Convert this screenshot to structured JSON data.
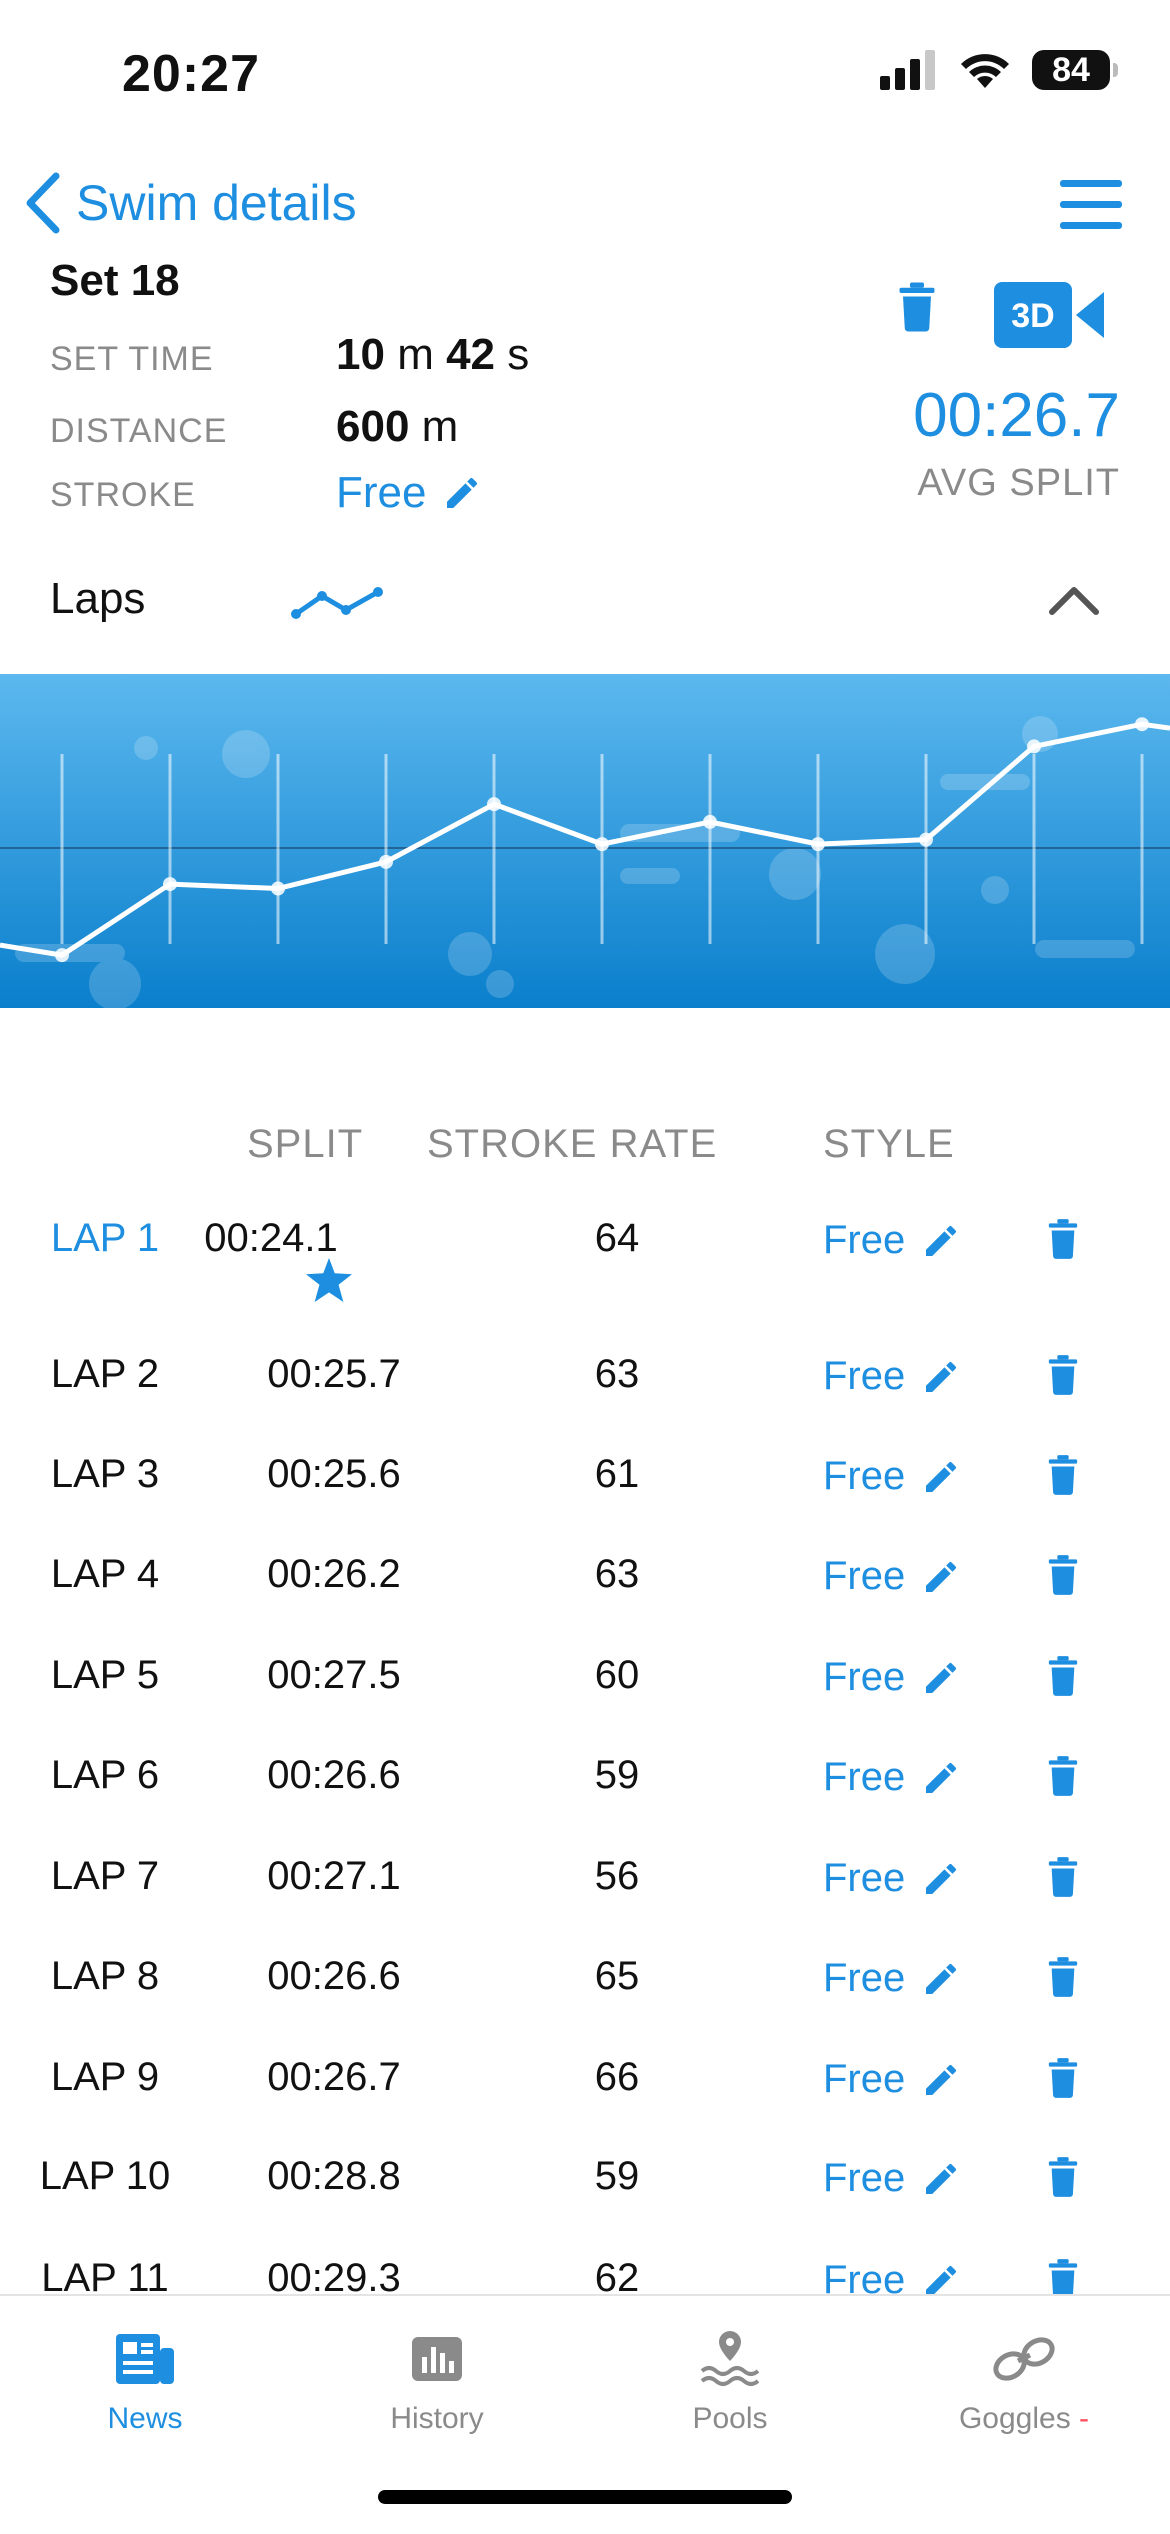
{
  "status_bar": {
    "time": "20:27",
    "battery": "84"
  },
  "nav": {
    "title": "Swim details"
  },
  "set": {
    "title": "Set 18",
    "set_time_label": "SET TIME",
    "set_time_min": "10",
    "set_time_min_unit": "m",
    "set_time_sec": "42",
    "set_time_sec_unit": "s",
    "distance_label": "DISTANCE",
    "distance_value": "600",
    "distance_unit": "m",
    "stroke_label": "STROKE",
    "stroke_value": "Free",
    "avg_split_value": "00:26.7",
    "avg_split_label": "AVG SPLIT",
    "camera_label": "3D"
  },
  "laps_section": {
    "label": "Laps"
  },
  "table": {
    "headers": {
      "split": "SPLIT",
      "stroke_rate": "STROKE RATE",
      "style": "STYLE"
    },
    "rows": [
      {
        "lap": "LAP 1",
        "split": "00:24.1",
        "rate": "64",
        "style": "Free",
        "best": true
      },
      {
        "lap": "LAP 2",
        "split": "00:25.7",
        "rate": "63",
        "style": "Free"
      },
      {
        "lap": "LAP 3",
        "split": "00:25.6",
        "rate": "61",
        "style": "Free"
      },
      {
        "lap": "LAP 4",
        "split": "00:26.2",
        "rate": "63",
        "style": "Free"
      },
      {
        "lap": "LAP 5",
        "split": "00:27.5",
        "rate": "60",
        "style": "Free"
      },
      {
        "lap": "LAP 6",
        "split": "00:26.6",
        "rate": "59",
        "style": "Free"
      },
      {
        "lap": "LAP 7",
        "split": "00:27.1",
        "rate": "56",
        "style": "Free"
      },
      {
        "lap": "LAP 8",
        "split": "00:26.6",
        "rate": "65",
        "style": "Free"
      },
      {
        "lap": "LAP 9",
        "split": "00:26.7",
        "rate": "66",
        "style": "Free"
      },
      {
        "lap": "LAP 10",
        "split": "00:28.8",
        "rate": "59",
        "style": "Free"
      },
      {
        "lap": "LAP 11",
        "split": "00:29.3",
        "rate": "62",
        "style": "Free"
      }
    ]
  },
  "tabs": [
    {
      "label": "News",
      "icon": "news-icon",
      "active": true
    },
    {
      "label": "History",
      "icon": "history-chart-icon"
    },
    {
      "label": "Pools",
      "icon": "pool-location-icon"
    },
    {
      "label": "Goggles",
      "icon": "goggles-link-icon",
      "badge": "-"
    }
  ],
  "chart_data": {
    "type": "line",
    "series": [
      {
        "values": [
          24.1,
          25.7,
          25.6,
          26.2,
          27.5,
          26.6,
          27.1,
          26.6,
          26.7,
          28.8,
          29.3
        ]
      }
    ]
  },
  "colors": {
    "accent": "#1e8ee0",
    "label_gray": "#8a8a8a",
    "chart_top": "#5cb8ee",
    "chart_bottom": "#0a7fcc"
  }
}
